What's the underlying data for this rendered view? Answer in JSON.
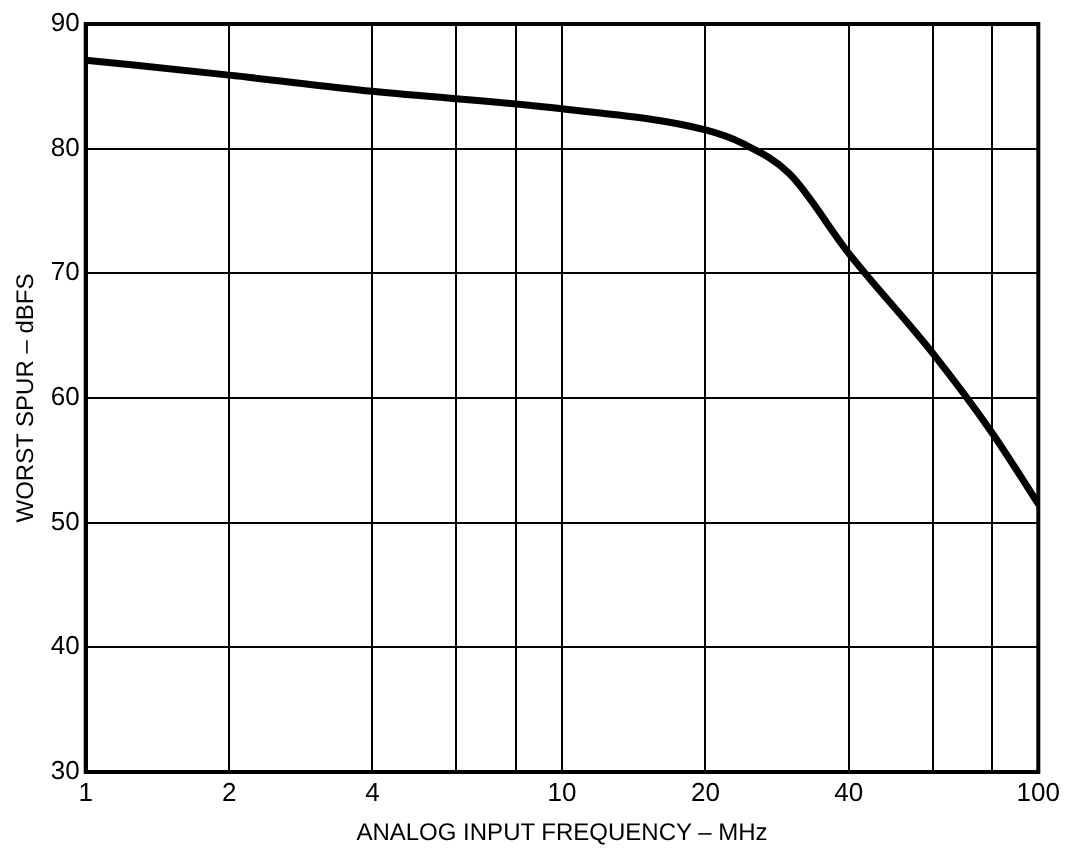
{
  "chart_data": {
    "type": "line",
    "xlabel": "ANALOG INPUT FREQUENCY – MHz",
    "ylabel": "WORST SPUR – dBFS",
    "log": "x",
    "x": [
      1,
      2,
      4,
      10,
      20,
      24,
      30,
      40,
      60,
      80,
      100
    ],
    "series": [
      {
        "color": "#000000",
        "values": [
          87.1,
          85.9,
          84.6,
          83.2,
          81.5,
          80.4,
          78,
          71.6,
          63.6,
          57.2,
          51.5
        ]
      }
    ],
    "xlim": [
      1,
      100
    ],
    "xticks": [
      1,
      2,
      4,
      {
        "value": 6,
        "label": null
      },
      {
        "value": 8,
        "label": null
      },
      10,
      20,
      40,
      {
        "value": 60,
        "label": null
      },
      {
        "value": 80,
        "label": null
      },
      100
    ],
    "ylim": [
      30,
      90
    ],
    "yticks": [
      30,
      40,
      50,
      60,
      70,
      80,
      90
    ],
    "grid": true,
    "legend": false,
    "marker": "none",
    "line_style": "solid"
  }
}
